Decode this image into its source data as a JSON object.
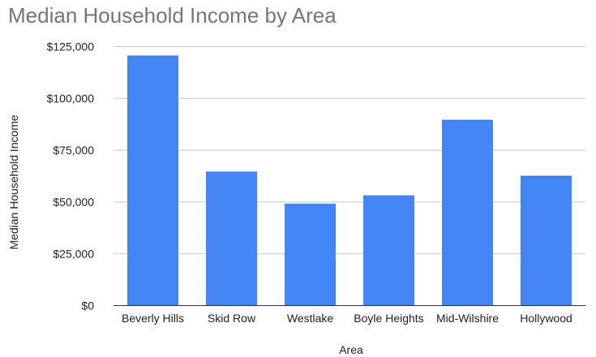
{
  "chart_data": {
    "type": "bar",
    "title": "Median Household Income by Area",
    "xlabel": "Area",
    "ylabel": "Median Household Income",
    "categories": [
      "Beverly Hills",
      "Skid Row",
      "Westlake",
      "Boyle Heights",
      "Mid-Wilshire",
      "Hollywood"
    ],
    "series": [
      {
        "values": [
          120500,
          64500,
          49000,
          53000,
          89500,
          62500
        ]
      }
    ],
    "ylim": [
      0,
      125000
    ],
    "yticks": [
      0,
      25000,
      50000,
      75000,
      100000,
      125000
    ],
    "ytick_labels": [
      "$0",
      "$25,000",
      "$50,000",
      "$75,000",
      "$100,000",
      "$125,000"
    ],
    "grid": true,
    "legend": "none",
    "bar_color": "#4285f4",
    "grid_color": "#cccccc",
    "baseline_color": "#333333"
  }
}
